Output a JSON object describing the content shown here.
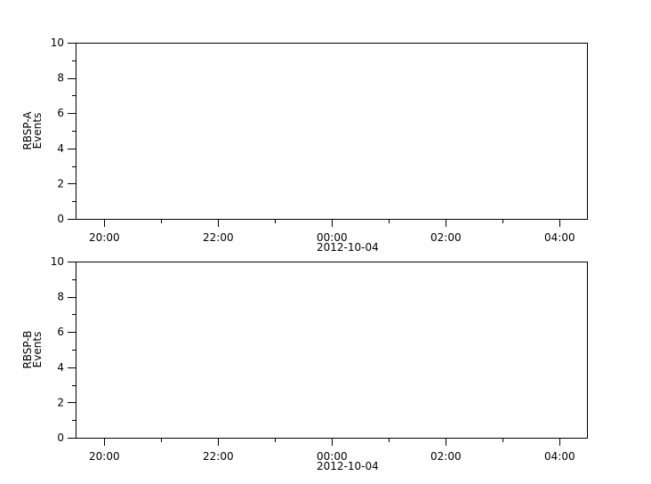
{
  "chart_data": [
    {
      "type": "line",
      "ylabel": [
        "RBSP-A",
        "Events"
      ],
      "ylim": [
        0,
        10
      ],
      "yticks": [
        "0",
        "2",
        "4",
        "6",
        "8",
        "10"
      ],
      "xlim": [
        "2012-10-03 19:30",
        "2012-10-04 04:30"
      ],
      "xticks": [
        "20:00",
        "22:00",
        "00:00",
        "02:00",
        "04:00"
      ],
      "xdate_label": "2012-10-04",
      "series": []
    },
    {
      "type": "line",
      "ylabel": [
        "RBSP-B",
        "Events"
      ],
      "ylim": [
        0,
        10
      ],
      "yticks": [
        "0",
        "2",
        "4",
        "6",
        "8",
        "10"
      ],
      "xlim": [
        "2012-10-03 19:30",
        "2012-10-04 04:30"
      ],
      "xticks": [
        "20:00",
        "22:00",
        "00:00",
        "02:00",
        "04:00"
      ],
      "xdate_label": "2012-10-04",
      "series": []
    }
  ]
}
